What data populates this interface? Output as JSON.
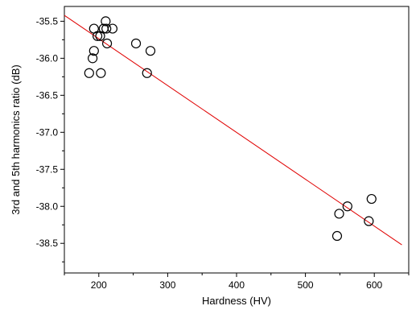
{
  "chart_data": {
    "type": "scatter",
    "xlabel": "Hardness (HV)",
    "ylabel": "3rd and 5th harmonics ratio (dB)",
    "xlim": [
      150,
      650
    ],
    "ylim": [
      -38.9,
      -35.3
    ],
    "x_ticks": [
      200,
      300,
      400,
      500,
      600
    ],
    "y_ticks": [
      -35.5,
      -36.0,
      -36.5,
      -37.0,
      -37.5,
      -38.0,
      -38.5
    ],
    "x_tick_labels": [
      "200",
      "300",
      "400",
      "500",
      "600"
    ],
    "y_tick_labels": [
      "-35.5",
      "-36.0",
      "-36.5",
      "-37.0",
      "-37.5",
      "-38.0",
      "-38.5"
    ],
    "grid": false,
    "series": [
      {
        "marker": "open-circle",
        "x": [
          186,
          191,
          193,
          193,
          198,
          202,
          203,
          207,
          210,
          211,
          212,
          220,
          254,
          270,
          275,
          546,
          549,
          561,
          592,
          596
        ],
        "y": [
          -36.2,
          -36.0,
          -35.6,
          -35.9,
          -35.7,
          -35.7,
          -36.2,
          -35.6,
          -35.5,
          -35.6,
          -35.8,
          -35.6,
          -35.8,
          -36.2,
          -35.9,
          -38.4,
          -38.1,
          -38.0,
          -38.2,
          -37.9
        ]
      }
    ],
    "fit_line": {
      "color": "#e00000",
      "x": [
        150,
        640
      ],
      "y": [
        -35.42,
        -38.52
      ]
    }
  }
}
